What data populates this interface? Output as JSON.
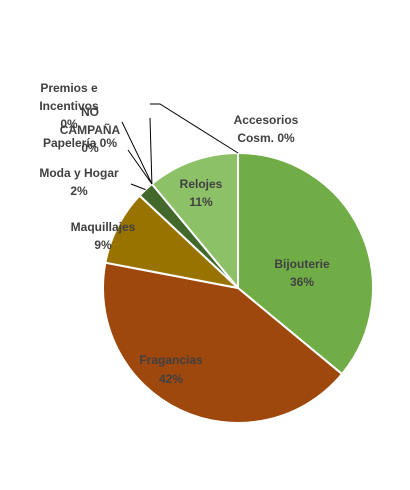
{
  "chart_data": {
    "type": "pie",
    "title": "",
    "slices": [
      {
        "name": "Bijouterie",
        "value": 36,
        "label": "36%",
        "color": "#70ad47"
      },
      {
        "name": "Fragancias",
        "value": 42,
        "label": "42%",
        "color": "#9e480e"
      },
      {
        "name": "Maquillajes",
        "value": 9,
        "label": "9%",
        "color": "#997300"
      },
      {
        "name": "Moda y Hogar",
        "value": 2,
        "label": "2%",
        "color": "#43682b"
      },
      {
        "name": "Papelería",
        "value": 0,
        "label": "0%",
        "color": "#264478"
      },
      {
        "name": "NO CAMPAÑA",
        "value": 0,
        "label": "0%",
        "color": "#636363"
      },
      {
        "name": "Premios e Incentivos",
        "value": 0,
        "label": "0%",
        "color": "#255e91"
      },
      {
        "name": "Relojes",
        "value": 11,
        "label": "11%",
        "color": "#8cc168"
      },
      {
        "name": "Accesorios Cosm.",
        "value": 0,
        "label": "0%",
        "color": "#a9d18e"
      }
    ]
  },
  "text": {
    "bijouterie_name": "Bijouterie",
    "bijouterie_pct": "36%",
    "fragancias_name": "Fragancias",
    "fragancias_pct": "42%",
    "maquillajes_name": "Maquillajes",
    "maquillajes_pct": "9%",
    "moda_name": "Moda y Hogar",
    "moda_pct": "2%",
    "papeleria": "Papelería 0%",
    "no_campana_1": "NO",
    "no_campana_2": "CAMPAÑA",
    "no_campana_pct": "0%",
    "premios_1": "Premios e",
    "premios_2": "Incentivos",
    "premios_pct": "0%",
    "relojes_name": "Relojes",
    "relojes_pct": "11%",
    "accesorios_1": "Accesorios",
    "accesorios_2": "Cosm. 0%"
  }
}
